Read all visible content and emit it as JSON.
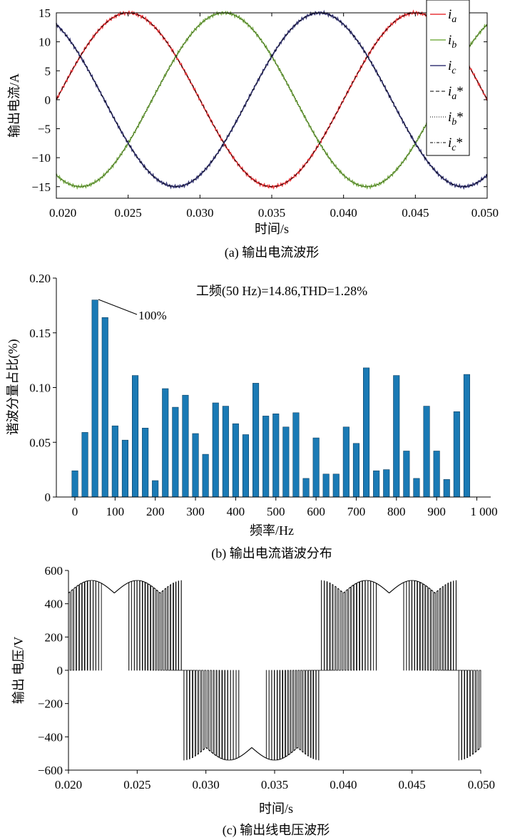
{
  "chart_data": [
    {
      "type": "line",
      "caption": "(a) 输出电流波形",
      "xlabel": "时间/s",
      "ylabel": "输出电流/A",
      "xlim": [
        0.02,
        0.05
      ],
      "ylim": [
        -17,
        15
      ],
      "xticks": [
        "0.020",
        "0.025",
        "0.030",
        "0.035",
        "0.040",
        "0.045",
        "0.050"
      ],
      "yticks": [
        "15",
        "10",
        "5",
        "0",
        "−5",
        "−10",
        "−15"
      ],
      "amplitude": 15,
      "frequency_hz": 50,
      "legend_position": "top-right",
      "series": [
        {
          "name": "a",
          "label": "i",
          "sub": "a",
          "star": "",
          "phase_deg": 0,
          "color": "#e8373a",
          "dash": ""
        },
        {
          "name": "b",
          "label": "i",
          "sub": "b",
          "star": "",
          "phase_deg": -120,
          "color": "#7bb04a",
          "dash": ""
        },
        {
          "name": "c",
          "label": "i",
          "sub": "c",
          "star": "",
          "phase_deg": 120,
          "color": "#3a3a78",
          "dash": ""
        },
        {
          "name": "a*",
          "label": "i",
          "sub": "a",
          "star": "*",
          "phase_deg": 0,
          "color": "#000000",
          "dash": "5,3"
        },
        {
          "name": "b*",
          "label": "i",
          "sub": "b",
          "star": "*",
          "phase_deg": -120,
          "color": "#000000",
          "dash": "1,2"
        },
        {
          "name": "c*",
          "label": "i",
          "sub": "c",
          "star": "*",
          "phase_deg": 120,
          "color": "#000000",
          "dash": "4,2,1,2"
        }
      ]
    },
    {
      "type": "bar",
      "caption": "(b) 输出电流谐波分布",
      "annotation": "工频(50 Hz)=14.86,THD=1.28%",
      "callout": "100%",
      "xlabel": "频率/Hz",
      "ylabel": "谐波分量占比(%)",
      "xlim": [
        -20,
        1010
      ],
      "ylim": [
        0,
        0.2
      ],
      "xticks": [
        "0",
        "100",
        "200",
        "300",
        "400",
        "500",
        "600",
        "700",
        "800",
        "900",
        "1 000"
      ],
      "yticks": [
        "0.20",
        "0.15",
        "0.10",
        "0.05",
        "0"
      ],
      "bar_color": "#1a7ab5",
      "categories": [
        0,
        25,
        50,
        75,
        100,
        125,
        150,
        175,
        200,
        225,
        250,
        275,
        300,
        325,
        350,
        375,
        400,
        425,
        450,
        475,
        500,
        525,
        550,
        575,
        600,
        625,
        650,
        675,
        700,
        725,
        750,
        775,
        800,
        825,
        850,
        875,
        900,
        925,
        950,
        975,
        1000
      ],
      "values": [
        0.024,
        0.059,
        0.18,
        0.164,
        0.065,
        0.052,
        0.111,
        0.063,
        0.015,
        0.099,
        0.082,
        0.093,
        0.058,
        0.039,
        0.086,
        0.083,
        0.067,
        0.057,
        0.104,
        0.074,
        0.076,
        0.064,
        0.077,
        0.017,
        0.054,
        0.021,
        0.021,
        0.064,
        0.049,
        0.118,
        0.024,
        0.025,
        0.111,
        0.042,
        0.017,
        0.083,
        0.042,
        0.016,
        0.078,
        0.112,
        0.0
      ]
    },
    {
      "type": "line",
      "caption": "(c) 输出线电压波形",
      "xlabel": "时间/s",
      "ylabel": "输出 电压/V",
      "xlim": [
        0.02,
        0.05
      ],
      "ylim": [
        -600,
        600
      ],
      "xticks": [
        "0.020",
        "0.025",
        "0.030",
        "0.035",
        "0.040",
        "0.045",
        "0.050"
      ],
      "yticks": [
        "600",
        "400",
        "200",
        "0",
        "−200",
        "−400",
        "−600"
      ],
      "dc_level": 540,
      "frequency_hz": 50,
      "series": [
        {
          "name": "line voltage",
          "color": "#000000"
        }
      ]
    }
  ]
}
